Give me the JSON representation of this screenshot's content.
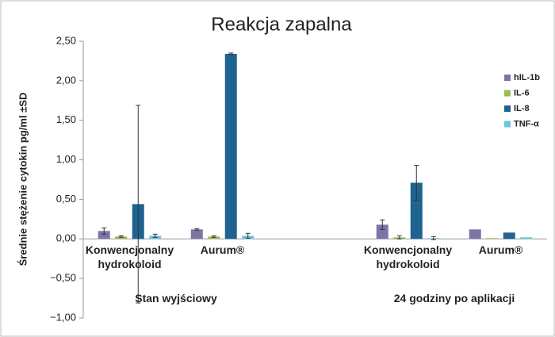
{
  "chart_data": {
    "type": "bar",
    "title": "Reakcja zapalna",
    "y_axis_label": "Średnie stężenie cytokin pg/ml ±SD",
    "categories": [
      "Konwencjonalny hydrokoloid",
      "Aurum®",
      "Konwencjonalny hydrokoloid",
      "Aurum®"
    ],
    "groups": [
      {
        "label": "Stan wyjściowy",
        "categories": [
          0,
          1
        ]
      },
      {
        "label": "24 godziny po aplikacji",
        "categories": [
          2,
          3
        ]
      }
    ],
    "series": [
      {
        "name": "hIL-1b",
        "color": "#8073a6",
        "values": [
          0.1,
          0.12,
          0.18,
          0.12
        ],
        "errors": [
          0.04,
          0.01,
          0.06,
          null
        ]
      },
      {
        "name": "IL-6",
        "color": "#9bbb59",
        "values": [
          0.03,
          0.03,
          0.02,
          0.01
        ],
        "errors": [
          0.01,
          0.01,
          0.02,
          null
        ]
      },
      {
        "name": "IL-8",
        "color": "#1f6391",
        "values": [
          0.44,
          2.34,
          0.71,
          0.08
        ],
        "errors": [
          1.25,
          0.01,
          0.22,
          null
        ]
      },
      {
        "name": "TNF-α",
        "color": "#6cc5e0",
        "values": [
          0.04,
          0.04,
          0.01,
          0.02
        ],
        "errors": [
          0.02,
          0.03,
          0.02,
          null
        ]
      }
    ],
    "ylim": [
      -1,
      2.5
    ],
    "yticks": [
      {
        "value": -1,
        "label": "−1,00"
      },
      {
        "value": -0.5,
        "label": "−0,50"
      },
      {
        "value": 0,
        "label": "0,00"
      },
      {
        "value": 0.5,
        "label": "0,50"
      },
      {
        "value": 1,
        "label": "1,00"
      },
      {
        "value": 1.5,
        "label": "1,50"
      },
      {
        "value": 2,
        "label": "2,00"
      },
      {
        "value": 2.5,
        "label": "2,50"
      }
    ],
    "legend": "right"
  }
}
